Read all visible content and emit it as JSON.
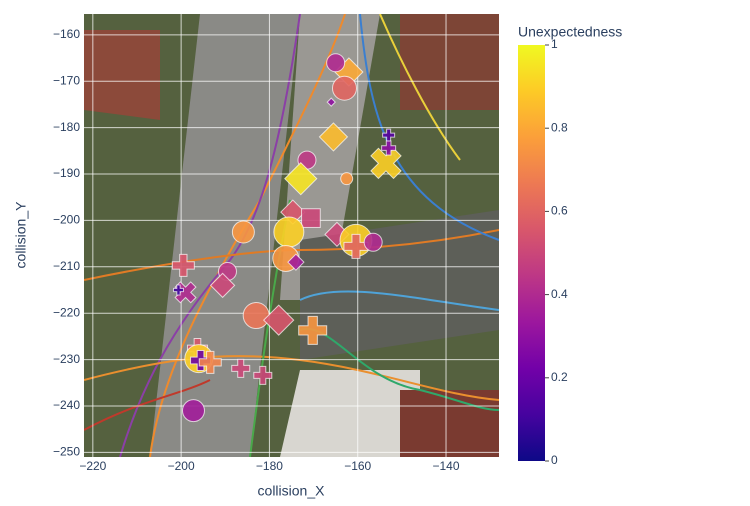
{
  "chart_data": {
    "type": "scatter",
    "x_label": "collision_X",
    "y_label": "collision_Y",
    "colorbar_title": "Unexpectedness",
    "xlim": [
      -222,
      -128
    ],
    "ylim": [
      -251,
      -155.5
    ],
    "xticks": [
      {
        "value": -220,
        "label": "−220"
      },
      {
        "value": -200,
        "label": "−200"
      },
      {
        "value": -180,
        "label": "−180"
      },
      {
        "value": -160,
        "label": "−160"
      },
      {
        "value": -140,
        "label": "−140"
      }
    ],
    "yticks": [
      {
        "value": -160,
        "label": "−160"
      },
      {
        "value": -170,
        "label": "−170"
      },
      {
        "value": -180,
        "label": "−180"
      },
      {
        "value": -190,
        "label": "−190"
      },
      {
        "value": -200,
        "label": "−200"
      },
      {
        "value": -210,
        "label": "−210"
      },
      {
        "value": -220,
        "label": "−220"
      },
      {
        "value": -230,
        "label": "−230"
      },
      {
        "value": -240,
        "label": "−240"
      },
      {
        "value": -250,
        "label": "−250"
      }
    ],
    "clim": [
      0,
      1
    ],
    "colorbar_ticks": [
      0,
      0.2,
      0.4,
      0.6,
      0.8,
      1
    ],
    "colorscale": [
      "#0d0887",
      "#46039f",
      "#7201a8",
      "#9c179e",
      "#bd3786",
      "#d8576b",
      "#ed7953",
      "#fb9f3a",
      "#fdca26",
      "#f0f921"
    ],
    "grid": true,
    "series": [
      {
        "x": [
          -162,
          -163,
          -165,
          -166,
          -165.5,
          -153.6,
          -153,
          -153,
          -171.5,
          -172.9,
          -174.7,
          -170.6,
          -175.6,
          -185.9,
          -164.7,
          -160.4,
          -160.4,
          -156.5,
          -176.3,
          -174,
          -199.5,
          -189.5,
          -190.6,
          -199,
          -200.6,
          -183,
          -177.9,
          -170.2,
          -196.3,
          -196,
          -195.6,
          -193.4,
          -186.5,
          -181.5,
          -197.2,
          -162.5
        ],
        "y": [
          -168,
          -171.5,
          -166,
          -174.5,
          -182,
          -187.7,
          -181.6,
          -184.4,
          -187,
          -191,
          -198.2,
          -199.5,
          -202.5,
          -202.5,
          -203,
          -204.3,
          -205.6,
          -204.7,
          -208.2,
          -209,
          -209.7,
          -211,
          -214,
          -215.5,
          -215,
          -220.5,
          -221.5,
          -223.7,
          -227.6,
          -229.8,
          -230.2,
          -230.6,
          -231.9,
          -233.4,
          -241,
          -191
        ],
        "color_values": [
          0.8,
          0.6,
          0.4,
          0.3,
          0.85,
          0.9,
          0.15,
          0.3,
          0.45,
          0.95,
          0.55,
          0.5,
          0.9,
          0.75,
          0.5,
          0.9,
          0.6,
          0.4,
          0.75,
          0.35,
          0.55,
          0.45,
          0.5,
          0.4,
          0.1,
          0.65,
          0.55,
          0.75,
          0.55,
          0.9,
          0.2,
          0.7,
          0.5,
          0.5,
          0.35,
          0.75
        ],
        "sizes": [
          28,
          24,
          18,
          8,
          28,
          32,
          12,
          14,
          18,
          32,
          24,
          22,
          30,
          22,
          24,
          32,
          24,
          18,
          26,
          16,
          22,
          18,
          24,
          22,
          10,
          26,
          30,
          28,
          20,
          28,
          20,
          22,
          18,
          18,
          22,
          12
        ],
        "symbols": [
          "diamond",
          "circle",
          "circle",
          "diamond",
          "diamond",
          "x",
          "cross",
          "cross",
          "circle",
          "diamond",
          "diamond",
          "square",
          "circle",
          "circle",
          "diamond",
          "circle",
          "cross",
          "circle",
          "circle",
          "diamond",
          "cross",
          "circle",
          "diamond",
          "x",
          "cross",
          "circle",
          "diamond",
          "cross",
          "cross",
          "circle",
          "cross",
          "cross",
          "cross",
          "cross",
          "circle",
          "circle"
        ]
      }
    ]
  }
}
